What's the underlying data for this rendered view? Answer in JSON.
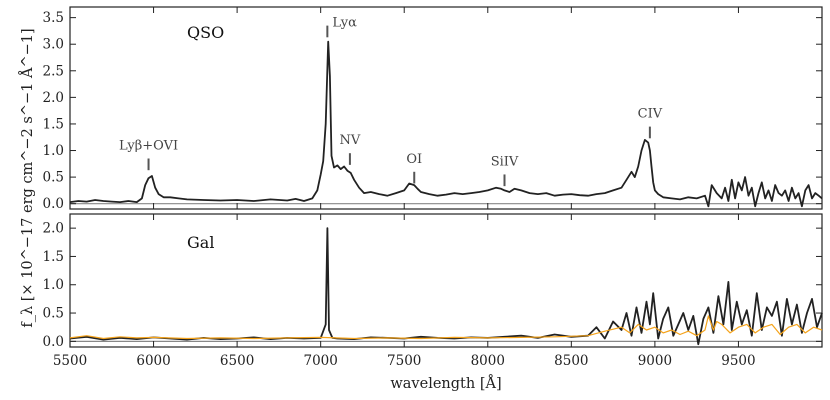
{
  "chart_data": [
    {
      "type": "line",
      "panel": "top",
      "label": "QSO",
      "xlim": [
        5500,
        10000
      ],
      "ylim": [
        -0.1,
        3.7
      ],
      "yticks": [
        0.0,
        0.5,
        1.0,
        1.5,
        2.0,
        2.5,
        3.0,
        3.5
      ],
      "ytick_labels": [
        "0.0",
        "0.5",
        "1.0",
        "1.5",
        "2.0",
        "2.5",
        "3.0",
        "3.5"
      ],
      "series": [
        {
          "name": "flux",
          "color": "#222222",
          "x": [
            5500,
            5550,
            5600,
            5650,
            5700,
            5750,
            5800,
            5850,
            5900,
            5930,
            5950,
            5970,
            5990,
            6010,
            6030,
            6060,
            6100,
            6150,
            6200,
            6300,
            6400,
            6500,
            6600,
            6700,
            6800,
            6850,
            6900,
            6950,
            6980,
            7000,
            7015,
            7030,
            7045,
            7055,
            7065,
            7080,
            7100,
            7120,
            7140,
            7160,
            7180,
            7200,
            7230,
            7260,
            7300,
            7350,
            7400,
            7450,
            7500,
            7530,
            7560,
            7580,
            7600,
            7650,
            7700,
            7750,
            7800,
            7850,
            7900,
            7950,
            8000,
            8050,
            8080,
            8100,
            8130,
            8160,
            8200,
            8250,
            8300,
            8350,
            8400,
            8450,
            8500,
            8550,
            8600,
            8650,
            8700,
            8750,
            8800,
            8830,
            8860,
            8880,
            8900,
            8920,
            8940,
            8960,
            8970,
            8980,
            8990,
            9000,
            9020,
            9050,
            9100,
            9150,
            9200,
            9250,
            9300,
            9320,
            9340,
            9370,
            9400,
            9420,
            9440,
            9460,
            9480,
            9500,
            9520,
            9540,
            9560,
            9580,
            9600,
            9620,
            9640,
            9660,
            9680,
            9700,
            9720,
            9740,
            9760,
            9780,
            9800,
            9820,
            9840,
            9860,
            9880,
            9900,
            9920,
            9940,
            9960,
            9980,
            10000
          ],
          "y": [
            0.03,
            0.05,
            0.04,
            0.07,
            0.05,
            0.04,
            0.03,
            0.05,
            0.03,
            0.1,
            0.35,
            0.48,
            0.52,
            0.3,
            0.18,
            0.12,
            0.12,
            0.1,
            0.08,
            0.07,
            0.06,
            0.07,
            0.05,
            0.08,
            0.06,
            0.09,
            0.05,
            0.1,
            0.25,
            0.55,
            0.8,
            1.5,
            3.05,
            2.4,
            0.9,
            0.68,
            0.72,
            0.65,
            0.7,
            0.62,
            0.58,
            0.45,
            0.3,
            0.2,
            0.22,
            0.18,
            0.15,
            0.2,
            0.25,
            0.38,
            0.35,
            0.28,
            0.22,
            0.18,
            0.15,
            0.17,
            0.2,
            0.18,
            0.2,
            0.22,
            0.25,
            0.3,
            0.28,
            0.25,
            0.22,
            0.28,
            0.25,
            0.2,
            0.18,
            0.2,
            0.15,
            0.17,
            0.18,
            0.16,
            0.15,
            0.18,
            0.2,
            0.25,
            0.3,
            0.45,
            0.6,
            0.5,
            0.7,
            1.0,
            1.2,
            1.15,
            1.0,
            0.7,
            0.4,
            0.25,
            0.18,
            0.12,
            0.1,
            0.08,
            0.12,
            0.1,
            0.15,
            -0.05,
            0.35,
            0.2,
            0.1,
            0.3,
            0.05,
            0.45,
            0.1,
            0.4,
            0.25,
            0.5,
            0.15,
            0.3,
            -0.05,
            0.2,
            0.4,
            0.1,
            0.25,
            0.05,
            0.35,
            0.2,
            0.15,
            0.25,
            0.05,
            0.3,
            0.1,
            0.2,
            -0.05,
            0.25,
            0.35,
            0.1,
            0.2,
            0.15,
            0.1
          ]
        }
      ],
      "annotations": [
        {
          "label": "Lyβ+OVI",
          "x": 5970
        },
        {
          "label": "Lyα",
          "x": 7040
        },
        {
          "label": "NV",
          "x": 7175
        },
        {
          "label": "OI",
          "x": 7560
        },
        {
          "label": "SiIV",
          "x": 8100
        },
        {
          "label": "CIV",
          "x": 8970
        }
      ]
    },
    {
      "type": "line",
      "panel": "bottom",
      "label": "Gal",
      "xlim": [
        5500,
        10000
      ],
      "ylim": [
        -0.1,
        2.25
      ],
      "yticks": [
        0.0,
        0.5,
        1.0,
        1.5,
        2.0
      ],
      "ytick_labels": [
        "0.0",
        "0.5",
        "1.0",
        "1.5",
        "2.0"
      ],
      "series": [
        {
          "name": "flux",
          "color": "#222222",
          "x": [
            5500,
            5600,
            5700,
            5800,
            5900,
            6000,
            6100,
            6200,
            6300,
            6400,
            6500,
            6600,
            6700,
            6800,
            6900,
            7000,
            7030,
            7040,
            7050,
            7070,
            7100,
            7200,
            7300,
            7400,
            7500,
            7600,
            7700,
            7800,
            7900,
            8000,
            8100,
            8200,
            8300,
            8400,
            8500,
            8600,
            8650,
            8700,
            8750,
            8800,
            8830,
            8860,
            8890,
            8920,
            8950,
            8970,
            8990,
            9020,
            9050,
            9080,
            9110,
            9140,
            9170,
            9200,
            9230,
            9260,
            9290,
            9320,
            9350,
            9380,
            9410,
            9440,
            9460,
            9490,
            9520,
            9550,
            9580,
            9610,
            9640,
            9670,
            9700,
            9730,
            9760,
            9790,
            9820,
            9850,
            9880,
            9910,
            9940,
            9970,
            10000
          ],
          "y": [
            0.05,
            0.08,
            0.03,
            0.06,
            0.04,
            0.07,
            0.05,
            0.03,
            0.06,
            0.04,
            0.05,
            0.07,
            0.04,
            0.06,
            0.05,
            0.06,
            0.3,
            2.0,
            0.2,
            0.06,
            0.05,
            0.04,
            0.07,
            0.06,
            0.05,
            0.08,
            0.06,
            0.05,
            0.07,
            0.06,
            0.08,
            0.1,
            0.06,
            0.12,
            0.08,
            0.1,
            0.25,
            0.05,
            0.35,
            0.2,
            0.5,
            0.1,
            0.6,
            0.15,
            0.7,
            0.3,
            0.85,
            0.05,
            0.4,
            0.6,
            0.1,
            0.3,
            0.5,
            0.2,
            0.45,
            -0.05,
            0.4,
            0.6,
            0.15,
            0.8,
            0.3,
            1.05,
            0.2,
            0.7,
            0.3,
            0.55,
            0.1,
            0.85,
            0.2,
            0.6,
            0.45,
            0.7,
            0.1,
            0.75,
            0.3,
            0.65,
            0.15,
            0.5,
            0.75,
            0.25,
            0.5
          ]
        },
        {
          "name": "model",
          "color": "#f5a31a",
          "x": [
            5500,
            5600,
            5700,
            5800,
            5900,
            6000,
            6200,
            6400,
            6600,
            6800,
            7000,
            7200,
            7400,
            7600,
            7800,
            8000,
            8200,
            8400,
            8600,
            8700,
            8800,
            8850,
            8900,
            8950,
            9000,
            9050,
            9100,
            9150,
            9200,
            9250,
            9300,
            9320,
            9350,
            9370,
            9400,
            9450,
            9500,
            9550,
            9600,
            9650,
            9700,
            9750,
            9800,
            9850,
            9900,
            9950,
            10000
          ],
          "y": [
            0.06,
            0.1,
            0.05,
            0.08,
            0.06,
            0.07,
            0.05,
            0.06,
            0.05,
            0.06,
            0.07,
            0.05,
            0.06,
            0.05,
            0.07,
            0.06,
            0.07,
            0.08,
            0.1,
            0.18,
            0.25,
            0.15,
            0.3,
            0.2,
            0.25,
            0.15,
            0.2,
            0.12,
            0.18,
            0.1,
            0.2,
            0.45,
            0.2,
            0.35,
            0.3,
            0.15,
            0.25,
            0.3,
            0.15,
            0.25,
            0.3,
            0.12,
            0.25,
            0.3,
            0.15,
            0.25,
            0.2
          ]
        }
      ]
    }
  ],
  "axes": {
    "xticks": [
      5500,
      6000,
      6500,
      7000,
      7500,
      8000,
      8500,
      9000,
      9500
    ],
    "xtick_labels": [
      "5500",
      "6000",
      "6500",
      "7000",
      "7500",
      "8000",
      "8500",
      "9000",
      "9500"
    ],
    "xlabel": "wavelength [Å]",
    "ylabel": "f_λ [× 10^−17 erg cm^−2 s^−1 Å^−1]"
  }
}
